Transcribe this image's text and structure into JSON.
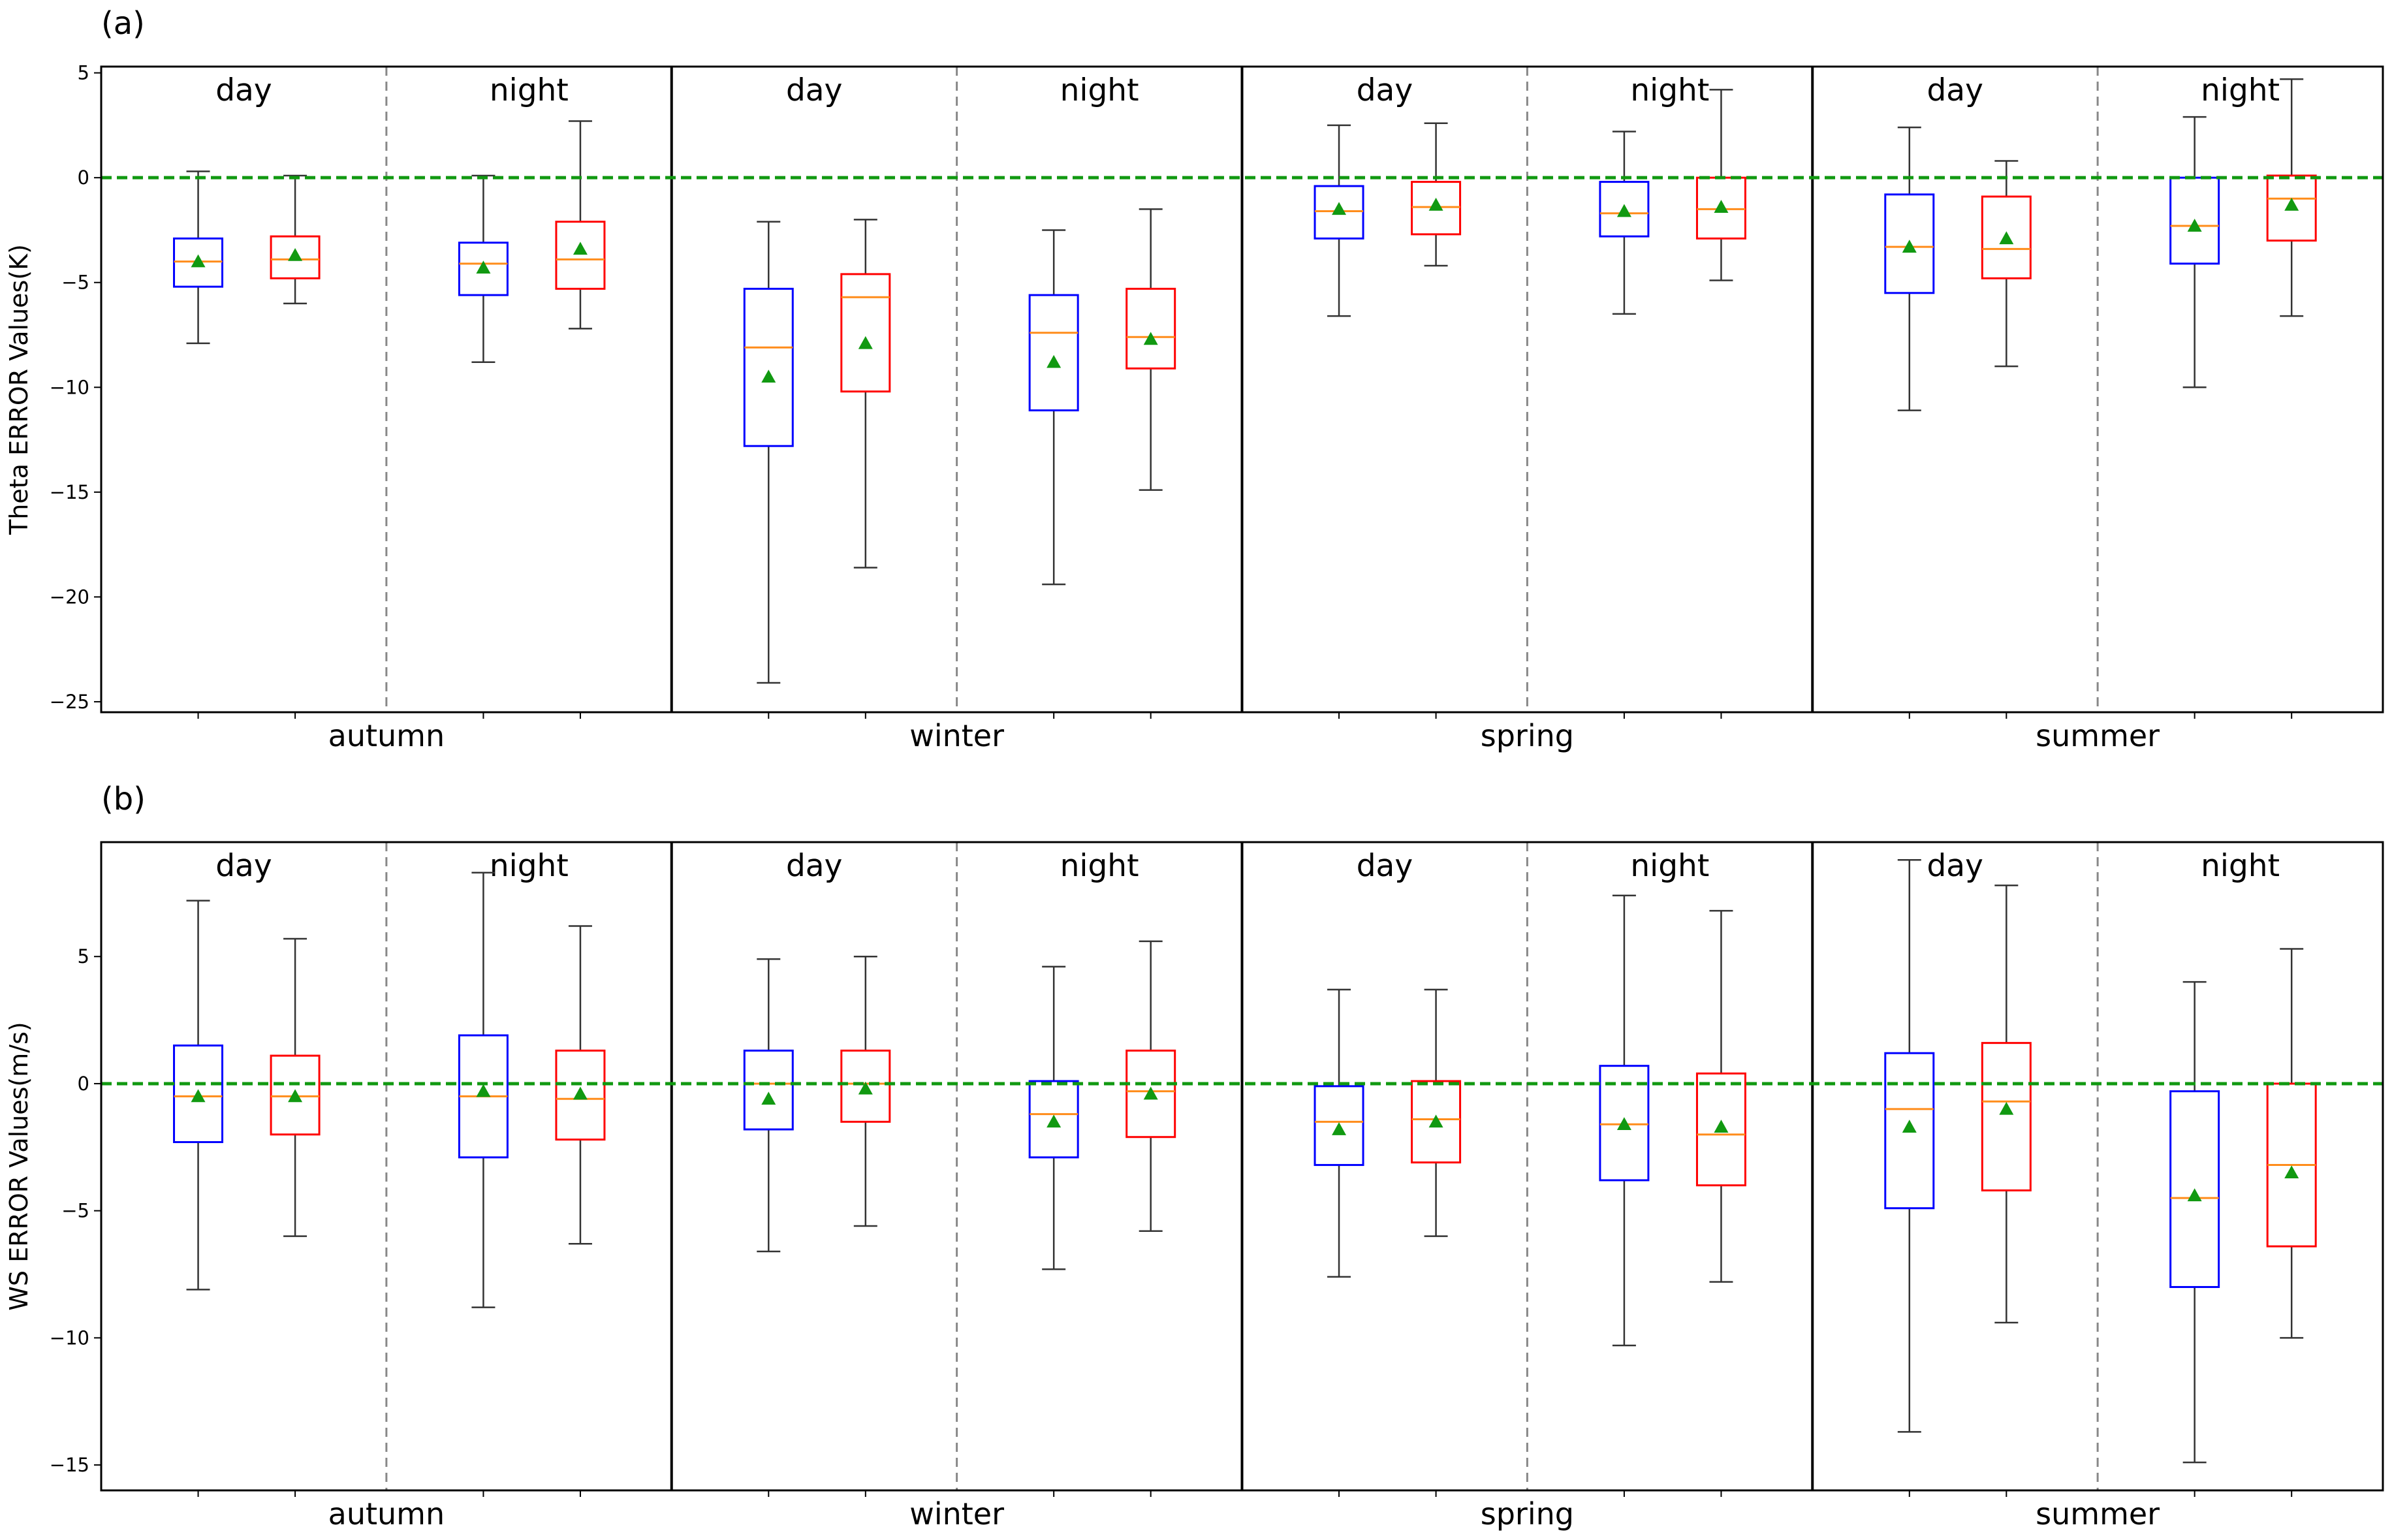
{
  "chart_data": [
    {
      "type": "box",
      "panel_label": "(a)",
      "title": "",
      "xlabel": "",
      "ylabel": "Theta ERROR Values(K)",
      "ylim": [
        -25.5,
        5.3
      ],
      "yticks": [
        5,
        0,
        -5,
        -10,
        -15,
        -20,
        -25
      ],
      "ytick_labels": [
        "5",
        "0",
        "−5",
        "−10",
        "−15",
        "−20",
        "−25"
      ],
      "reference_line": 0,
      "seasons": [
        "autumn",
        "winter",
        "spring",
        "summer"
      ],
      "periods": [
        "day",
        "night"
      ],
      "series": [
        {
          "name": "blue",
          "color": "#0000ff"
        },
        {
          "name": "red",
          "color": "#ff0000"
        }
      ],
      "boxes": [
        {
          "season": "autumn",
          "period": "day",
          "series": "blue",
          "whislo": -7.9,
          "q1": -5.2,
          "median": -4.0,
          "q3": -2.9,
          "whishi": 0.3,
          "mean": -4.0
        },
        {
          "season": "autumn",
          "period": "day",
          "series": "red",
          "whislo": -6.0,
          "q1": -4.8,
          "median": -3.9,
          "q3": -2.8,
          "whishi": 0.1,
          "mean": -3.7
        },
        {
          "season": "autumn",
          "period": "night",
          "series": "blue",
          "whislo": -8.8,
          "q1": -5.6,
          "median": -4.1,
          "q3": -3.1,
          "whishi": 0.1,
          "mean": -4.3
        },
        {
          "season": "autumn",
          "period": "night",
          "series": "red",
          "whislo": -7.2,
          "q1": -5.3,
          "median": -3.9,
          "q3": -2.1,
          "whishi": 2.7,
          "mean": -3.4
        },
        {
          "season": "winter",
          "period": "day",
          "series": "blue",
          "whislo": -24.1,
          "q1": -12.8,
          "median": -8.1,
          "q3": -5.3,
          "whishi": -2.1,
          "mean": -9.5
        },
        {
          "season": "winter",
          "period": "day",
          "series": "red",
          "whislo": -18.6,
          "q1": -10.2,
          "median": -5.7,
          "q3": -4.6,
          "whishi": -2.0,
          "mean": -7.9
        },
        {
          "season": "winter",
          "period": "night",
          "series": "blue",
          "whislo": -19.4,
          "q1": -11.1,
          "median": -7.4,
          "q3": -5.6,
          "whishi": -2.5,
          "mean": -8.8
        },
        {
          "season": "winter",
          "period": "night",
          "series": "red",
          "whislo": -14.9,
          "q1": -9.1,
          "median": -7.6,
          "q3": -5.3,
          "whishi": -1.5,
          "mean": -7.7
        },
        {
          "season": "spring",
          "period": "day",
          "series": "blue",
          "whislo": -6.6,
          "q1": -2.9,
          "median": -1.6,
          "q3": -0.4,
          "whishi": 2.5,
          "mean": -1.5
        },
        {
          "season": "spring",
          "period": "day",
          "series": "red",
          "whislo": -4.2,
          "q1": -2.7,
          "median": -1.4,
          "q3": -0.2,
          "whishi": 2.6,
          "mean": -1.3
        },
        {
          "season": "spring",
          "period": "night",
          "series": "blue",
          "whislo": -6.5,
          "q1": -2.8,
          "median": -1.7,
          "q3": -0.2,
          "whishi": 2.2,
          "mean": -1.6
        },
        {
          "season": "spring",
          "period": "night",
          "series": "red",
          "whislo": -4.9,
          "q1": -2.9,
          "median": -1.5,
          "q3": 0.0,
          "whishi": 4.2,
          "mean": -1.4
        },
        {
          "season": "summer",
          "period": "day",
          "series": "blue",
          "whislo": -11.1,
          "q1": -5.5,
          "median": -3.3,
          "q3": -0.8,
          "whishi": 2.4,
          "mean": -3.3
        },
        {
          "season": "summer",
          "period": "day",
          "series": "red",
          "whislo": -9.0,
          "q1": -4.8,
          "median": -3.4,
          "q3": -0.9,
          "whishi": 0.8,
          "mean": -2.9
        },
        {
          "season": "summer",
          "period": "night",
          "series": "blue",
          "whislo": -10.0,
          "q1": -4.1,
          "median": -2.3,
          "q3": 0.0,
          "whishi": 2.9,
          "mean": -2.3
        },
        {
          "season": "summer",
          "period": "night",
          "series": "red",
          "whislo": -6.6,
          "q1": -3.0,
          "median": -1.0,
          "q3": 0.1,
          "whishi": 4.7,
          "mean": -1.3
        }
      ]
    },
    {
      "type": "box",
      "panel_label": "(b)",
      "title": "",
      "xlabel": "",
      "ylabel": "WS ERROR Values(m/s)",
      "ylim": [
        -16.0,
        9.5
      ],
      "yticks": [
        5,
        0,
        -5,
        -10,
        -15
      ],
      "ytick_labels": [
        "5",
        "0",
        "−5",
        "−10",
        "−15"
      ],
      "reference_line": 0,
      "seasons": [
        "autumn",
        "winter",
        "spring",
        "summer"
      ],
      "periods": [
        "day",
        "night"
      ],
      "series": [
        {
          "name": "blue",
          "color": "#0000ff"
        },
        {
          "name": "red",
          "color": "#ff0000"
        }
      ],
      "boxes": [
        {
          "season": "autumn",
          "period": "day",
          "series": "blue",
          "whislo": -8.1,
          "q1": -2.3,
          "median": -0.5,
          "q3": 1.5,
          "whishi": 7.2,
          "mean": -0.5
        },
        {
          "season": "autumn",
          "period": "day",
          "series": "red",
          "whislo": -6.0,
          "q1": -2.0,
          "median": -0.5,
          "q3": 1.1,
          "whishi": 5.7,
          "mean": -0.5
        },
        {
          "season": "autumn",
          "period": "night",
          "series": "blue",
          "whislo": -8.8,
          "q1": -2.9,
          "median": -0.5,
          "q3": 1.9,
          "whishi": 8.3,
          "mean": -0.3
        },
        {
          "season": "autumn",
          "period": "night",
          "series": "red",
          "whislo": -6.3,
          "q1": -2.2,
          "median": -0.6,
          "q3": 1.3,
          "whishi": 6.2,
          "mean": -0.4
        },
        {
          "season": "winter",
          "period": "day",
          "series": "blue",
          "whislo": -6.6,
          "q1": -1.8,
          "median": 0.0,
          "q3": 1.3,
          "whishi": 4.9,
          "mean": -0.6
        },
        {
          "season": "winter",
          "period": "day",
          "series": "red",
          "whislo": -5.6,
          "q1": -1.5,
          "median": 0.0,
          "q3": 1.3,
          "whishi": 5.0,
          "mean": -0.2
        },
        {
          "season": "winter",
          "period": "night",
          "series": "blue",
          "whislo": -7.3,
          "q1": -2.9,
          "median": -1.2,
          "q3": 0.1,
          "whishi": 4.6,
          "mean": -1.5
        },
        {
          "season": "winter",
          "period": "night",
          "series": "red",
          "whislo": -5.8,
          "q1": -2.1,
          "median": -0.3,
          "q3": 1.3,
          "whishi": 5.6,
          "mean": -0.4
        },
        {
          "season": "spring",
          "period": "day",
          "series": "blue",
          "whislo": -7.6,
          "q1": -3.2,
          "median": -1.5,
          "q3": -0.1,
          "whishi": 3.7,
          "mean": -1.8
        },
        {
          "season": "spring",
          "period": "day",
          "series": "red",
          "whislo": -6.0,
          "q1": -3.1,
          "median": -1.4,
          "q3": 0.1,
          "whishi": 3.7,
          "mean": -1.5
        },
        {
          "season": "spring",
          "period": "night",
          "series": "blue",
          "whislo": -10.3,
          "q1": -3.8,
          "median": -1.6,
          "q3": 0.7,
          "whishi": 7.4,
          "mean": -1.6
        },
        {
          "season": "spring",
          "period": "night",
          "series": "red",
          "whislo": -7.8,
          "q1": -4.0,
          "median": -2.0,
          "q3": 0.4,
          "whishi": 6.8,
          "mean": -1.7
        },
        {
          "season": "summer",
          "period": "day",
          "series": "blue",
          "whislo": -13.7,
          "q1": -4.9,
          "median": -1.0,
          "q3": 1.2,
          "whishi": 8.8,
          "mean": -1.7
        },
        {
          "season": "summer",
          "period": "day",
          "series": "red",
          "whislo": -9.4,
          "q1": -4.2,
          "median": -0.7,
          "q3": 1.6,
          "whishi": 7.8,
          "mean": -1.0
        },
        {
          "season": "summer",
          "period": "night",
          "series": "blue",
          "whislo": -14.9,
          "q1": -8.0,
          "median": -4.5,
          "q3": -0.3,
          "whishi": 4.0,
          "mean": -4.4
        },
        {
          "season": "summer",
          "period": "night",
          "series": "red",
          "whislo": -10.0,
          "q1": -6.4,
          "median": -3.2,
          "q3": 0.0,
          "whishi": 5.3,
          "mean": -3.5
        }
      ]
    }
  ]
}
